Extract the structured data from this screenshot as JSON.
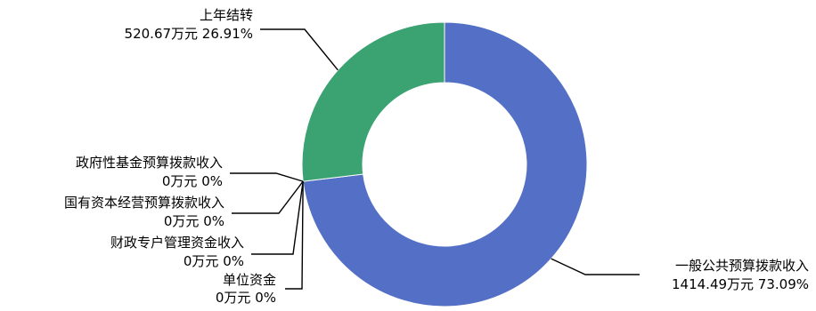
{
  "chart_data": {
    "type": "pie",
    "style": "donut",
    "title": "",
    "legend": "none",
    "slices": [
      {
        "name": "一般公共预算拨款收入",
        "value": 1414.49,
        "percent": 73.09,
        "value_label": "1414.49万元 73.09%",
        "color": "#5470C6"
      },
      {
        "name": "单位资金",
        "value": 0,
        "percent": 0,
        "value_label": "0万元 0%",
        "color": "#5470C6"
      },
      {
        "name": "财政专户管理资金收入",
        "value": 0,
        "percent": 0,
        "value_label": "0万元 0%",
        "color": "#5470C6"
      },
      {
        "name": "国有资本经营预算拨款收入",
        "value": 0,
        "percent": 0,
        "value_label": "0万元 0%",
        "color": "#5470C6"
      },
      {
        "name": "政府性基金预算拨款收入",
        "value": 0,
        "percent": 0,
        "value_label": "0万元 0%",
        "color": "#5470C6"
      },
      {
        "name": "上年结转",
        "value": 520.67,
        "percent": 26.91,
        "value_label": "520.67万元 26.91%",
        "color": "#3BA272"
      }
    ]
  }
}
